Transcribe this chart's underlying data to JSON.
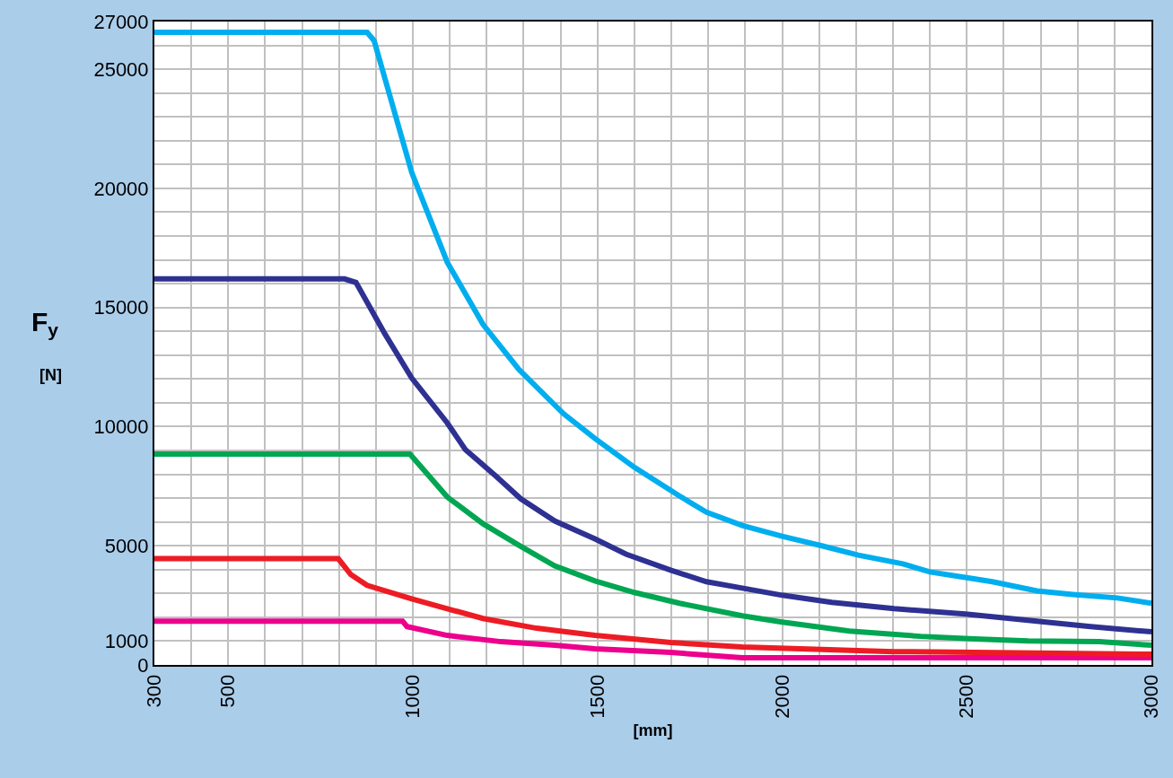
{
  "chart_data": {
    "type": "line",
    "xlabel": "[mm]",
    "ylabel": "F$_{y}$\n[N]",
    "xlim": [
      300,
      3000
    ],
    "ylim": [
      0,
      27000
    ],
    "xticks": [
      300,
      {
        "value": 400,
        "label": null
      },
      500,
      {
        "value": 600,
        "label": null
      },
      {
        "value": 700,
        "label": null
      },
      {
        "value": 800,
        "label": null
      },
      {
        "value": 900,
        "label": null
      },
      1000,
      {
        "value": 1100,
        "label": null
      },
      {
        "value": 1200,
        "label": null
      },
      {
        "value": 1300,
        "label": null
      },
      {
        "value": 1400,
        "label": null
      },
      1500,
      {
        "value": 1600,
        "label": null
      },
      {
        "value": 1700,
        "label": null
      },
      {
        "value": 1800,
        "label": null
      },
      {
        "value": 1900,
        "label": null
      },
      2000,
      {
        "value": 2100,
        "label": null
      },
      {
        "value": 2200,
        "label": null
      },
      {
        "value": 2300,
        "label": null
      },
      {
        "value": 2400,
        "label": null
      },
      2500,
      {
        "value": 2600,
        "label": null
      },
      {
        "value": 2700,
        "label": null
      },
      {
        "value": 2800,
        "label": null
      },
      {
        "value": 2900,
        "label": null
      },
      3000
    ],
    "yticks": [
      0,
      1000,
      {
        "value": 2000,
        "label": null
      },
      {
        "value": 3000,
        "label": null
      },
      {
        "value": 4000,
        "label": null
      },
      5000,
      {
        "value": 6000,
        "label": null
      },
      {
        "value": 7000,
        "label": null
      },
      {
        "value": 8000,
        "label": null
      },
      {
        "value": 9000,
        "label": null
      },
      10000,
      {
        "value": 11000,
        "label": null
      },
      {
        "value": 12000,
        "label": null
      },
      {
        "value": 13000,
        "label": null
      },
      {
        "value": 14000,
        "label": null
      },
      15000,
      {
        "value": 16000,
        "label": null
      },
      {
        "value": 17000,
        "label": null
      },
      {
        "value": 18000,
        "label": null
      },
      {
        "value": 19000,
        "label": null
      },
      20000,
      {
        "value": 21000,
        "label": null
      },
      {
        "value": 22000,
        "label": null
      },
      {
        "value": 23000,
        "label": null
      },
      {
        "value": 24000,
        "label": null
      },
      25000,
      {
        "value": 26000,
        "label": null
      },
      27000
    ],
    "grid": true,
    "marker": "none",
    "line_style": "solid",
    "series": [
      {
        "color": "#ec008c",
        "x": [
          300,
          972,
          984,
          1093,
          1239,
          1384,
          1493,
          1698,
          1892,
          2303,
          3000
        ],
        "values": [
          1840,
          1840,
          1610,
          1240,
          975,
          825,
          675,
          525,
          300,
          300,
          300
        ]
      },
      {
        "color": "#ed1c24",
        "x": [
          300,
          798,
          832,
          876,
          997,
          1093,
          1190,
          1335,
          1493,
          1698,
          1892,
          2303,
          3000
        ],
        "values": [
          4460,
          4460,
          3790,
          3340,
          2775,
          2360,
          1950,
          1540,
          1240,
          940,
          750,
          560,
          450
        ]
      },
      {
        "color": "#00a651",
        "x": [
          300,
          992,
          1045,
          1093,
          1190,
          1287,
          1384,
          1493,
          1600,
          1722,
          1892,
          2000,
          2182,
          2375,
          2521,
          2666,
          2859,
          3000
        ],
        "values": [
          8850,
          8850,
          7910,
          7050,
          5925,
          5025,
          4160,
          3525,
          3040,
          2590,
          2060,
          1800,
          1425,
          1200,
          1090,
          1010,
          975,
          825
        ]
      },
      {
        "color": "#2e3192",
        "x": [
          300,
          815,
          846,
          924,
          997,
          1093,
          1142,
          1226,
          1292,
          1384,
          1493,
          1577,
          1698,
          1795,
          1892,
          2000,
          2134,
          2303,
          2496,
          2666,
          2835,
          3000
        ],
        "values": [
          16200,
          16200,
          16050,
          13900,
          12040,
          10160,
          9040,
          7910,
          6975,
          6040,
          5290,
          4650,
          3975,
          3490,
          3225,
          2925,
          2625,
          2360,
          2140,
          1875,
          1610,
          1390
        ]
      },
      {
        "color": "#00aeef",
        "x": [
          300,
          876,
          895,
          997,
          1093,
          1190,
          1287,
          1408,
          1493,
          1600,
          1722,
          1795,
          1892,
          2000,
          2110,
          2206,
          2327,
          2400,
          2496,
          2569,
          2690,
          2787,
          2908,
          3000
        ],
        "values": [
          26550,
          26550,
          26200,
          20660,
          16900,
          14290,
          12400,
          10540,
          9500,
          8290,
          7090,
          6410,
          5850,
          5400,
          4990,
          4610,
          4240,
          3900,
          3675,
          3490,
          3110,
          2960,
          2810,
          2590
        ]
      }
    ]
  }
}
